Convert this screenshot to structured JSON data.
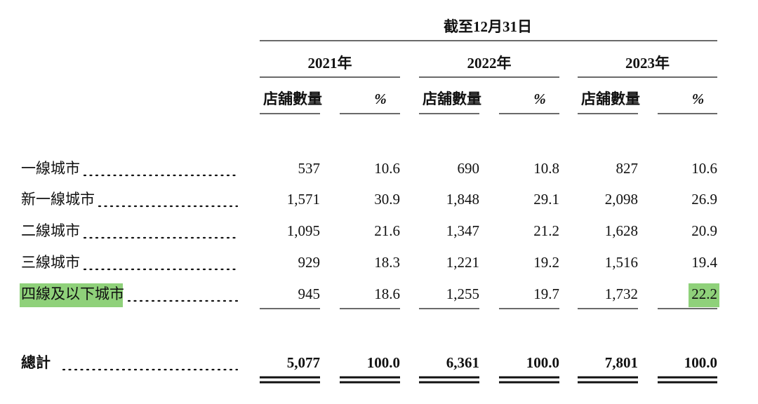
{
  "header": {
    "title": "截至12月31日",
    "years": [
      "2021年",
      "2022年",
      "2023年"
    ],
    "columns": [
      "店舖數量",
      "%",
      "店舖數量",
      "%",
      "店舖數量",
      "%"
    ]
  },
  "table": {
    "rows": [
      {
        "label": "一線城市",
        "cells": [
          "537",
          "10.6",
          "690",
          "10.8",
          "827",
          "10.6"
        ]
      },
      {
        "label": "新一線城市",
        "cells": [
          "1,571",
          "30.9",
          "1,848",
          "29.1",
          "2,098",
          "26.9"
        ]
      },
      {
        "label": "二線城市",
        "cells": [
          "1,095",
          "21.6",
          "1,347",
          "21.2",
          "1,628",
          "20.9"
        ]
      },
      {
        "label": "三線城市",
        "cells": [
          "929",
          "18.3",
          "1,221",
          "19.2",
          "1,516",
          "19.4"
        ]
      },
      {
        "label": "四線及以下城市",
        "cells": [
          "945",
          "18.6",
          "1,255",
          "19.7",
          "1,732",
          "22.2"
        ]
      }
    ],
    "total": {
      "label": "總計",
      "cells": [
        "5,077",
        "100.0",
        "6,361",
        "100.0",
        "7,801",
        "100.0"
      ]
    }
  }
}
